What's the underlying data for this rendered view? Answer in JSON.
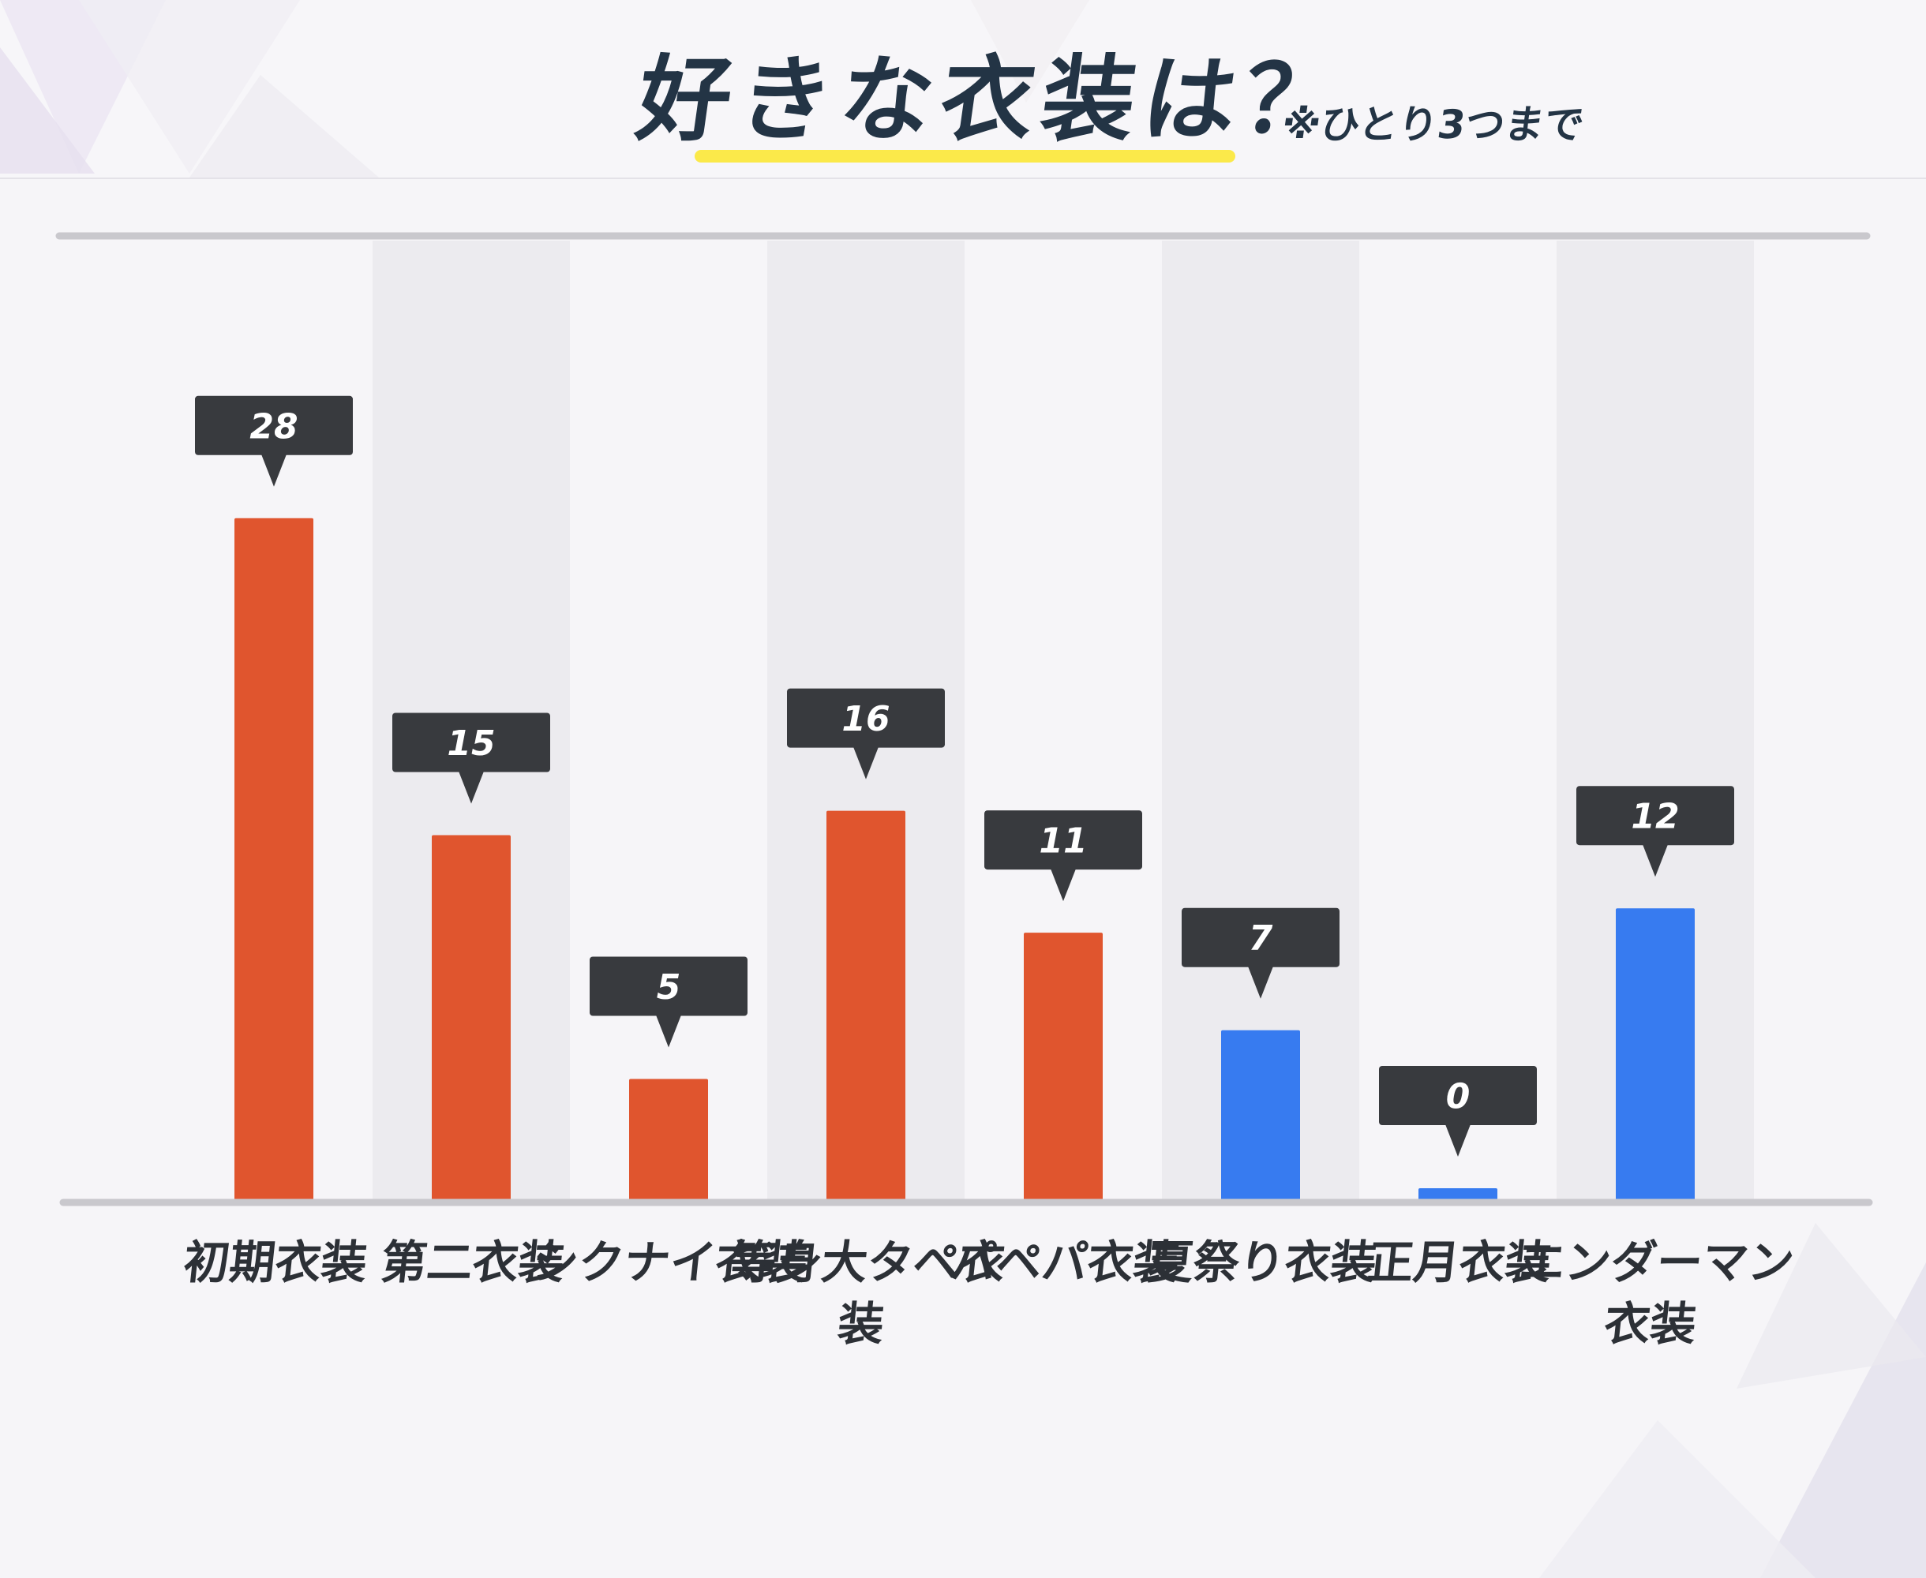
{
  "header": {
    "title": "好きな衣装は？",
    "note": "※ひとり3つまで"
  },
  "colors": {
    "background": "#f6f5f8",
    "stripe": "#ecebef",
    "axis_line": "#c9c8cd",
    "bar_orange": "#e0552e",
    "bar_blue": "#377bf0",
    "callout": "#383a3e",
    "title_text": "#233445",
    "underline": "#fbe94a"
  },
  "chart_data": {
    "type": "bar",
    "categories": [
      "初期衣装",
      "第二衣装",
      "シクナイ衣装",
      "等身大タペ衣装",
      "パペパ衣装",
      "夏祭り衣装",
      "正月衣装",
      "エンダーマン衣装"
    ],
    "category_lines": [
      [
        "初期衣装"
      ],
      [
        "第二衣装"
      ],
      [
        "シクナイ衣装"
      ],
      [
        "等身大タペ衣",
        "装"
      ],
      [
        "パペパ衣装"
      ],
      [
        "夏祭り衣装"
      ],
      [
        "正月衣装"
      ],
      [
        "エンダーマン",
        "衣装"
      ]
    ],
    "values": [
      28,
      15,
      5,
      16,
      11,
      7,
      0,
      12
    ],
    "bar_colors": [
      "#e0552e",
      "#e0552e",
      "#e0552e",
      "#e0552e",
      "#e0552e",
      "#377bf0",
      "#377bf0",
      "#377bf0"
    ],
    "value_labels": [
      "28",
      "15",
      "5",
      "16",
      "11",
      "7",
      "0",
      "12"
    ],
    "ylim": [
      0,
      35
    ],
    "grid": false,
    "legend": "none"
  }
}
